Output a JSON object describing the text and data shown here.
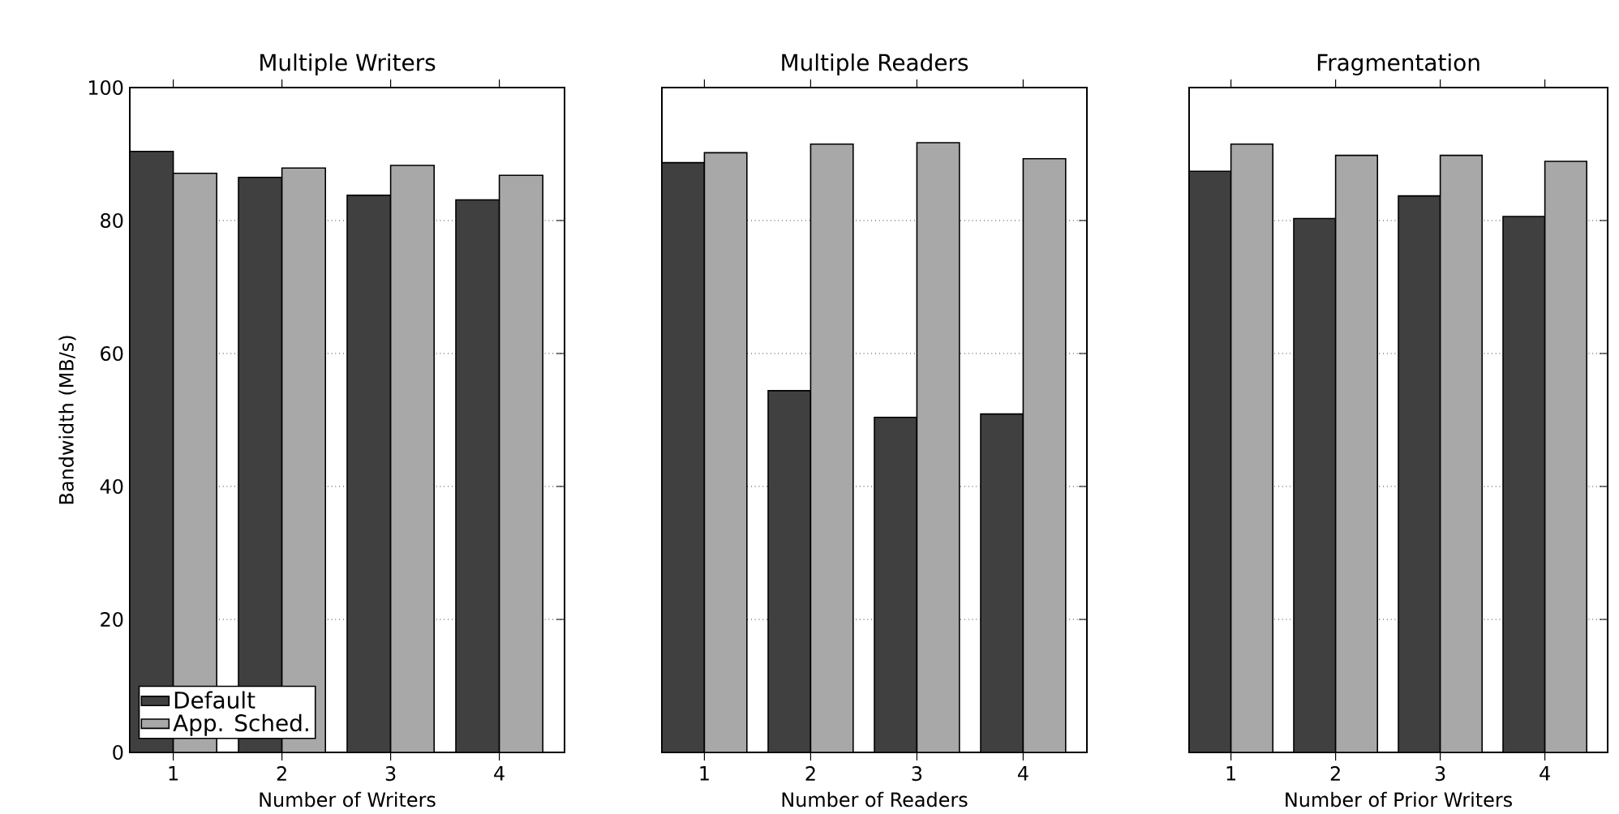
{
  "chart_data": [
    {
      "type": "bar",
      "title": "Multiple Writers",
      "xlabel": "Number of Writers",
      "ylabel": "Bandwidth (MB/s)",
      "categories": [
        "1",
        "2",
        "3",
        "4"
      ],
      "series": [
        {
          "name": "Default",
          "color": "#404040",
          "values": [
            90.4,
            86.5,
            83.8,
            83.1
          ]
        },
        {
          "name": "App. Sched.",
          "color": "#a8a8a8",
          "values": [
            87.1,
            87.9,
            88.3,
            86.8
          ]
        }
      ],
      "ylim": [
        0,
        100
      ],
      "yticks": [
        0,
        20,
        40,
        60,
        80,
        100
      ],
      "grid": "y",
      "legend": "bottom left"
    },
    {
      "type": "bar",
      "title": "Multiple Readers",
      "xlabel": "Number of Readers",
      "categories": [
        "1",
        "2",
        "3",
        "4"
      ],
      "series": [
        {
          "color": "#404040",
          "values": [
            88.7,
            54.4,
            50.4,
            50.9
          ]
        },
        {
          "color": "#a8a8a8",
          "values": [
            90.2,
            91.5,
            91.7,
            89.3
          ]
        }
      ],
      "ylim": [
        0,
        100
      ],
      "yticks": [
        0,
        20,
        40,
        60,
        80,
        100
      ],
      "grid": "y",
      "tick_labels": "x"
    },
    {
      "type": "bar",
      "title": "Fragmentation",
      "xlabel": "Number of Prior Writers",
      "categories": [
        "1",
        "2",
        "3",
        "4"
      ],
      "series": [
        {
          "color": "#404040",
          "values": [
            87.4,
            80.3,
            83.7,
            80.6
          ]
        },
        {
          "color": "#a8a8a8",
          "values": [
            91.5,
            89.8,
            89.8,
            88.9
          ]
        }
      ],
      "ylim": [
        0,
        100
      ],
      "yticks": [
        0,
        20,
        40,
        60,
        80,
        100
      ],
      "grid": "y",
      "tick_labels": "x"
    }
  ]
}
